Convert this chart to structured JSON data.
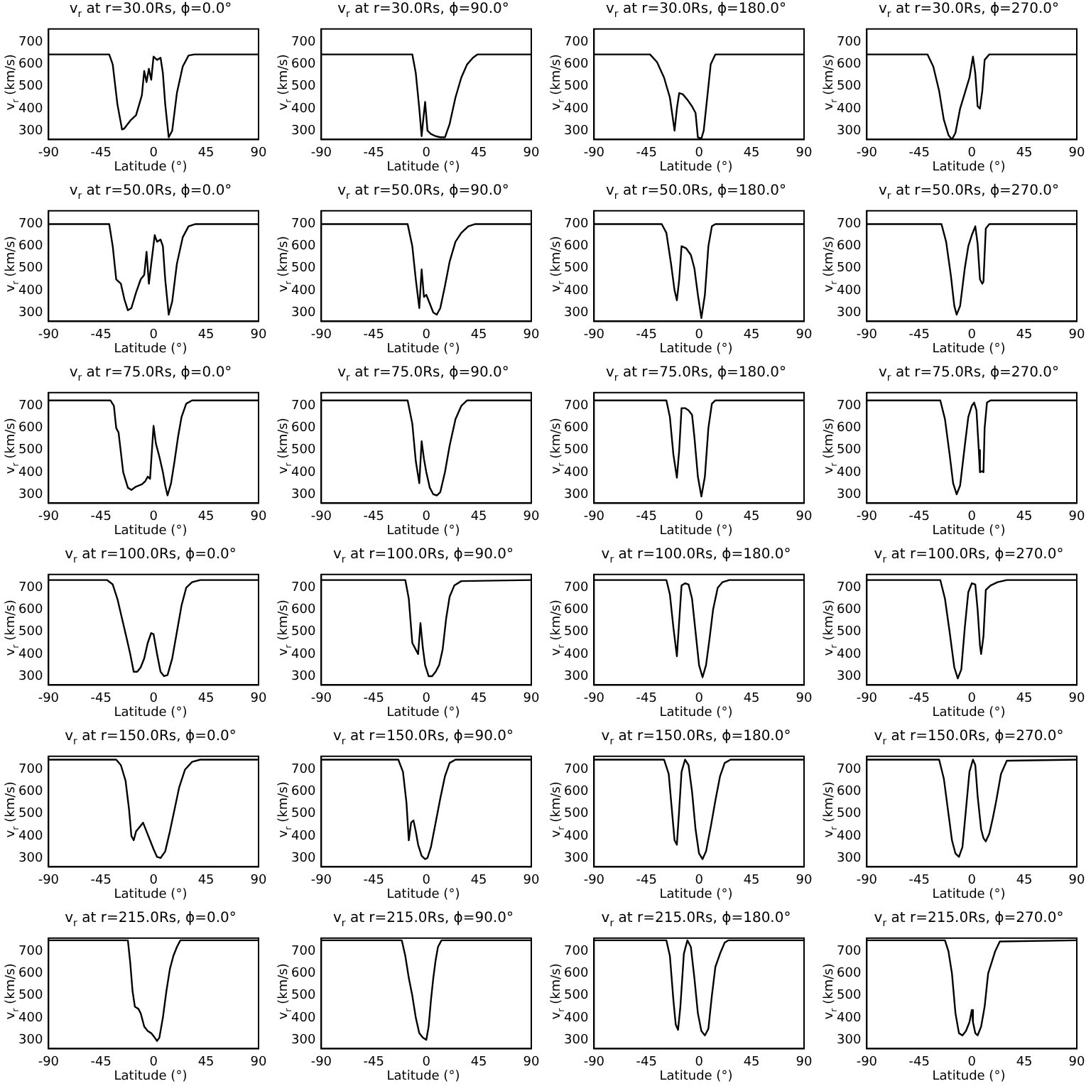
{
  "chart_data": [
    {
      "type": "line",
      "title": "v$_{r}$ at r=30.0Rs, ϕ=0.0°",
      "xlabel": "Latitude (°)",
      "ylabel": "v$_{r}$ (km/s)",
      "color": "#000000",
      "xlim": [
        -90,
        90
      ],
      "xticks": [
        -90,
        -45,
        0,
        45,
        90
      ],
      "ylim": [
        260,
        760
      ],
      "yticks": [
        300,
        400,
        500,
        600,
        700
      ],
      "x": [
        -90,
        -38,
        -35,
        -31,
        -27,
        -25,
        -20,
        -15,
        -10,
        -8,
        -6,
        -4,
        -2,
        0,
        3,
        6,
        8,
        10,
        13,
        16,
        20,
        25,
        30,
        35,
        90
      ],
      "values": [
        645,
        645,
        600,
        420,
        305,
        310,
        345,
        370,
        460,
        570,
        520,
        580,
        530,
        635,
        620,
        630,
        560,
        420,
        270,
        300,
        470,
        590,
        640,
        645,
        645
      ]
    },
    {
      "type": "line",
      "title": "v$_{r}$ at r=30.0Rs, ϕ=90.0°",
      "xlabel": "Latitude (°)",
      "ylabel": "v$_{r}$ (km/s)",
      "color": "#000000",
      "xlim": [
        -90,
        90
      ],
      "xticks": [
        -90,
        -45,
        0,
        45,
        90
      ],
      "ylim": [
        260,
        760
      ],
      "yticks": [
        300,
        400,
        500,
        600,
        700
      ],
      "x": [
        -90,
        -12,
        -9,
        -6,
        -4,
        -3,
        -1,
        1,
        4,
        8,
        12,
        16,
        20,
        25,
        30,
        35,
        40,
        44,
        90
      ],
      "values": [
        645,
        645,
        560,
        400,
        275,
        330,
        430,
        300,
        285,
        275,
        270,
        270,
        330,
        450,
        540,
        600,
        630,
        645,
        645
      ]
    },
    {
      "type": "line",
      "title": "v$_{r}$ at r=30.0Rs, ϕ=180.0°",
      "xlabel": "Latitude (°)",
      "ylabel": "v$_{r}$ (km/s)",
      "color": "#000000",
      "xlim": [
        -90,
        90
      ],
      "xticks": [
        -90,
        -45,
        0,
        45,
        90
      ],
      "ylim": [
        260,
        760
      ],
      "yticks": [
        300,
        400,
        500,
        600,
        700
      ],
      "x": [
        -90,
        -42,
        -36,
        -30,
        -25,
        -21,
        -19,
        -17,
        -14,
        -10,
        -6,
        -3,
        -1,
        2,
        4,
        7,
        10,
        14,
        90
      ],
      "values": [
        645,
        645,
        610,
        540,
        450,
        300,
        400,
        470,
        465,
        440,
        410,
        380,
        270,
        265,
        300,
        450,
        600,
        645,
        645
      ]
    },
    {
      "type": "line",
      "title": "v$_{r}$ at r=30.0Rs, ϕ=270.0°",
      "xlabel": "Latitude (°)",
      "ylabel": "v$_{r}$ (km/s)",
      "color": "#000000",
      "xlim": [
        -90,
        90
      ],
      "xticks": [
        -90,
        -45,
        0,
        45,
        90
      ],
      "ylim": [
        260,
        760
      ],
      "yticks": [
        300,
        400,
        500,
        600,
        700
      ],
      "x": [
        -90,
        -38,
        -33,
        -28,
        -24,
        -20,
        -17,
        -14,
        -10,
        -6,
        -2,
        1,
        3,
        5,
        7,
        9,
        11,
        15,
        90
      ],
      "values": [
        645,
        645,
        590,
        480,
        350,
        280,
        260,
        290,
        400,
        470,
        540,
        635,
        560,
        410,
        400,
        480,
        620,
        645,
        645
      ]
    },
    {
      "type": "line",
      "title": "v$_{r}$ at r=50.0Rs, ϕ=0.0°",
      "xlabel": "Latitude (°)",
      "ylabel": "v$_{r}$ (km/s)",
      "color": "#000000",
      "xlim": [
        -90,
        90
      ],
      "xticks": [
        -90,
        -45,
        0,
        45,
        90
      ],
      "ylim": [
        260,
        760
      ],
      "yticks": [
        300,
        400,
        500,
        600,
        700
      ],
      "x": [
        -90,
        -38,
        -35,
        -32,
        -28,
        -25,
        -22,
        -19,
        -15,
        -11,
        -8,
        -6,
        -4,
        -2,
        1,
        3,
        6,
        8,
        10,
        13,
        16,
        20,
        25,
        30,
        36,
        90
      ],
      "values": [
        700,
        700,
        600,
        450,
        430,
        360,
        310,
        320,
        390,
        450,
        470,
        575,
        430,
        520,
        650,
        620,
        630,
        600,
        450,
        290,
        350,
        520,
        640,
        690,
        700,
        700
      ]
    },
    {
      "type": "line",
      "title": "v$_{r}$ at r=50.0Rs, ϕ=90.0°",
      "xlabel": "Latitude (°)",
      "ylabel": "v$_{r}$ (km/s)",
      "color": "#000000",
      "xlim": [
        -90,
        90
      ],
      "xticks": [
        -90,
        -45,
        0,
        45,
        90
      ],
      "ylim": [
        260,
        760
      ],
      "yticks": [
        300,
        400,
        500,
        600,
        700
      ],
      "x": [
        -90,
        -16,
        -12,
        -9,
        -6,
        -4,
        -2,
        0,
        3,
        6,
        9,
        12,
        16,
        20,
        25,
        30,
        36,
        42,
        90
      ],
      "values": [
        700,
        700,
        600,
        450,
        320,
        495,
        370,
        380,
        340,
        300,
        290,
        320,
        420,
        530,
        620,
        660,
        690,
        700,
        700
      ]
    },
    {
      "type": "line",
      "title": "v$_{r}$ at r=50.0Rs, ϕ=180.0°",
      "xlabel": "Latitude (°)",
      "ylabel": "v$_{r}$ (km/s)",
      "color": "#000000",
      "xlim": [
        -90,
        90
      ],
      "xticks": [
        -90,
        -45,
        0,
        45,
        90
      ],
      "ylim": [
        260,
        760
      ],
      "yticks": [
        300,
        400,
        500,
        600,
        700
      ],
      "x": [
        -90,
        -32,
        -28,
        -24,
        -21,
        -19,
        -17,
        -15,
        -11,
        -7,
        -4,
        -1,
        2,
        5,
        8,
        11,
        14,
        90
      ],
      "values": [
        700,
        700,
        660,
        520,
        400,
        355,
        450,
        600,
        590,
        560,
        500,
        380,
        275,
        380,
        600,
        690,
        700,
        700
      ]
    },
    {
      "type": "line",
      "title": "v$_{r}$ at r=50.0Rs, ϕ=270.0°",
      "xlabel": "Latitude (°)",
      "ylabel": "v$_{r}$ (km/s)",
      "color": "#000000",
      "xlim": [
        -90,
        90
      ],
      "xticks": [
        -90,
        -45,
        0,
        45,
        90
      ],
      "ylim": [
        260,
        760
      ],
      "yticks": [
        300,
        400,
        500,
        600,
        700
      ],
      "x": [
        -90,
        -26,
        -22,
        -18,
        -15,
        -13,
        -10,
        -6,
        -3,
        0,
        3,
        5,
        7,
        9,
        10,
        12,
        15,
        90
      ],
      "values": [
        700,
        700,
        620,
        470,
        330,
        290,
        330,
        500,
        600,
        650,
        690,
        610,
        450,
        430,
        440,
        680,
        700,
        700
      ]
    },
    {
      "type": "line",
      "title": "v$_{r}$ at r=75.0Rs, ϕ=0.0°",
      "xlabel": "Latitude (°)",
      "ylabel": "v$_{r}$ (km/s)",
      "color": "#000000",
      "xlim": [
        -90,
        90
      ],
      "xticks": [
        -90,
        -45,
        0,
        45,
        90
      ],
      "ylim": [
        260,
        760
      ],
      "yticks": [
        300,
        400,
        500,
        600,
        700
      ],
      "x": [
        -90,
        -37,
        -34,
        -32,
        -30,
        -26,
        -22,
        -19,
        -15,
        -10,
        -7,
        -5,
        -3,
        0,
        2,
        5,
        8,
        10,
        12,
        15,
        18,
        21,
        24,
        28,
        33,
        90
      ],
      "values": [
        725,
        725,
        700,
        600,
        580,
        400,
        330,
        320,
        335,
        345,
        360,
        380,
        370,
        610,
        530,
        470,
        400,
        340,
        295,
        350,
        450,
        560,
        650,
        710,
        725,
        725
      ]
    },
    {
      "type": "line",
      "title": "v$_{r}$ at r=75.0Rs, ϕ=90.0°",
      "xlabel": "Latitude (°)",
      "ylabel": "v$_{r}$ (km/s)",
      "color": "#000000",
      "xlim": [
        -90,
        90
      ],
      "xticks": [
        -90,
        -45,
        0,
        45,
        90
      ],
      "ylim": [
        260,
        760
      ],
      "yticks": [
        300,
        400,
        500,
        600,
        700
      ],
      "x": [
        -90,
        -16,
        -12,
        -9,
        -6,
        -4,
        -2,
        0,
        3,
        6,
        9,
        12,
        16,
        20,
        25,
        30,
        35,
        90
      ],
      "values": [
        725,
        725,
        620,
        450,
        350,
        540,
        460,
        400,
        330,
        300,
        295,
        310,
        400,
        520,
        640,
        700,
        725,
        725
      ]
    },
    {
      "type": "line",
      "title": "v$_{r}$ at r=75.0Rs, ϕ=180.0°",
      "xlabel": "Latitude (°)",
      "ylabel": "v$_{r}$ (km/s)",
      "color": "#000000",
      "xlim": [
        -90,
        90
      ],
      "xticks": [
        -90,
        -45,
        0,
        45,
        90
      ],
      "ylim": [
        260,
        760
      ],
      "yticks": [
        300,
        400,
        500,
        600,
        700
      ],
      "x": [
        -90,
        -28,
        -25,
        -22,
        -19,
        -17,
        -15,
        -12,
        -9,
        -6,
        -4,
        -1,
        2,
        5,
        8,
        11,
        14,
        90
      ],
      "values": [
        725,
        725,
        650,
        480,
        375,
        500,
        690,
        690,
        680,
        660,
        560,
        380,
        290,
        380,
        600,
        710,
        725,
        725
      ]
    },
    {
      "type": "line",
      "title": "v$_{r}$ at r=75.0Rs, ϕ=270.0°",
      "xlabel": "Latitude (°)",
      "ylabel": "v$_{r}$ (km/s)",
      "color": "#000000",
      "xlim": [
        -90,
        90
      ],
      "xticks": [
        -90,
        -45,
        0,
        45,
        90
      ],
      "ylim": [
        260,
        760
      ],
      "yticks": [
        300,
        400,
        500,
        600,
        700
      ],
      "x": [
        -90,
        -27,
        -23,
        -19,
        -16,
        -13,
        -10,
        -6,
        -3,
        0,
        2,
        4,
        6,
        7,
        9,
        10,
        11,
        13,
        16,
        90
      ],
      "values": [
        725,
        725,
        640,
        480,
        350,
        300,
        340,
        520,
        650,
        700,
        715,
        680,
        500,
        400,
        405,
        400,
        600,
        715,
        725,
        725
      ]
    },
    {
      "type": "line",
      "title": "v$_{r}$ at r=100.0Rs, ϕ=0.0°",
      "xlabel": "Latitude (°)",
      "ylabel": "v$_{r}$ (km/s)",
      "color": "#000000",
      "xlim": [
        -90,
        90
      ],
      "xticks": [
        -90,
        -45,
        0,
        45,
        90
      ],
      "ylim": [
        260,
        760
      ],
      "yticks": [
        300,
        400,
        500,
        600,
        700
      ],
      "x": [
        -90,
        -40,
        -35,
        -31,
        -27,
        -23,
        -20,
        -17,
        -14,
        -11,
        -8,
        -5,
        -2,
        0,
        3,
        6,
        9,
        12,
        16,
        20,
        24,
        28,
        33,
        40,
        90
      ],
      "values": [
        735,
        735,
        715,
        650,
        560,
        470,
        400,
        320,
        320,
        340,
        380,
        450,
        495,
        490,
        400,
        320,
        300,
        305,
        380,
        500,
        620,
        700,
        725,
        735,
        735
      ]
    },
    {
      "type": "line",
      "title": "v$_{r}$ at r=100.0Rs, ϕ=90.0°",
      "xlabel": "Latitude (°)",
      "ylabel": "v$_{r}$ (km/s)",
      "color": "#000000",
      "xlim": [
        -90,
        90
      ],
      "xticks": [
        -90,
        -45,
        0,
        45,
        90
      ],
      "ylim": [
        260,
        760
      ],
      "yticks": [
        300,
        400,
        500,
        600,
        700
      ],
      "x": [
        -90,
        -18,
        -15,
        -12,
        -9,
        -7,
        -5,
        -3,
        -1,
        2,
        5,
        8,
        11,
        14,
        17,
        20,
        24,
        30,
        90
      ],
      "values": [
        735,
        735,
        650,
        450,
        420,
        400,
        540,
        430,
        350,
        300,
        300,
        320,
        350,
        420,
        560,
        660,
        710,
        730,
        735
      ]
    },
    {
      "type": "line",
      "title": "v$_{r}$ at r=100.0Rs, ϕ=180.0°",
      "xlabel": "Latitude (°)",
      "ylabel": "v$_{r}$ (km/s)",
      "color": "#000000",
      "xlim": [
        -90,
        90
      ],
      "xticks": [
        -90,
        -45,
        0,
        45,
        90
      ],
      "ylim": [
        260,
        760
      ],
      "yticks": [
        300,
        400,
        500,
        600,
        700
      ],
      "x": [
        -90,
        -28,
        -25,
        -22,
        -19,
        -17,
        -15,
        -12,
        -9,
        -6,
        -3,
        0,
        3,
        6,
        9,
        12,
        16,
        20,
        26,
        90
      ],
      "values": [
        735,
        735,
        670,
        520,
        390,
        550,
        710,
        720,
        715,
        650,
        500,
        350,
        295,
        350,
        470,
        600,
        700,
        725,
        735,
        735
      ]
    },
    {
      "type": "line",
      "title": "v$_{r}$ at r=100.0Rs, ϕ=270.0°",
      "xlabel": "Latitude (°)",
      "ylabel": "v$_{r}$ (km/s)",
      "color": "#000000",
      "xlim": [
        -90,
        90
      ],
      "xticks": [
        -90,
        -45,
        0,
        45,
        90
      ],
      "ylim": [
        260,
        760
      ],
      "yticks": [
        300,
        400,
        500,
        600,
        700
      ],
      "x": [
        -90,
        -27,
        -23,
        -19,
        -15,
        -12,
        -9,
        -6,
        -3,
        0,
        3,
        5,
        7,
        8,
        10,
        12,
        16,
        22,
        30,
        90
      ],
      "values": [
        735,
        735,
        650,
        500,
        340,
        290,
        330,
        520,
        680,
        720,
        715,
        600,
        440,
        400,
        480,
        690,
        710,
        725,
        735,
        735
      ]
    },
    {
      "type": "line",
      "title": "v$_{r}$ at r=150.0Rs, ϕ=0.0°",
      "xlabel": "Latitude (°)",
      "ylabel": "v$_{r}$ (km/s)",
      "color": "#000000",
      "xlim": [
        -90,
        90
      ],
      "xticks": [
        -90,
        -45,
        0,
        45,
        90
      ],
      "ylim": [
        260,
        760
      ],
      "yticks": [
        300,
        400,
        500,
        600,
        700
      ],
      "x": [
        -90,
        -32,
        -28,
        -24,
        -21,
        -19,
        -17,
        -15,
        -12,
        -9,
        -6,
        -3,
        0,
        3,
        6,
        10,
        14,
        18,
        22,
        27,
        33,
        40,
        90
      ],
      "values": [
        745,
        745,
        720,
        650,
        520,
        400,
        380,
        420,
        440,
        460,
        420,
        380,
        340,
        305,
        300,
        330,
        420,
        520,
        620,
        700,
        735,
        745,
        745
      ]
    },
    {
      "type": "line",
      "title": "v$_{r}$ at r=150.0Rs, ϕ=90.0°",
      "xlabel": "Latitude (°)",
      "ylabel": "v$_{r}$ (km/s)",
      "color": "#000000",
      "xlim": [
        -90,
        90
      ],
      "xticks": [
        -90,
        -45,
        0,
        45,
        90
      ],
      "ylim": [
        260,
        760
      ],
      "yticks": [
        300,
        400,
        500,
        600,
        700
      ],
      "x": [
        -90,
        -24,
        -20,
        -17,
        -15,
        -13,
        -11,
        -9,
        -7,
        -4,
        -1,
        1,
        4,
        8,
        12,
        16,
        20,
        25,
        90
      ],
      "values": [
        745,
        745,
        690,
        550,
        380,
        460,
        470,
        420,
        360,
        310,
        295,
        300,
        350,
        460,
        570,
        670,
        730,
        745,
        745
      ]
    },
    {
      "type": "line",
      "title": "v$_{r}$ at r=150.0Rs, ϕ=180.0°",
      "xlabel": "Latitude (°)",
      "ylabel": "v$_{r}$ (km/s)",
      "color": "#000000",
      "xlim": [
        -90,
        90
      ],
      "xticks": [
        -90,
        -45,
        0,
        45,
        90
      ],
      "ylim": [
        260,
        760
      ],
      "yticks": [
        300,
        400,
        500,
        600,
        700
      ],
      "x": [
        -90,
        -30,
        -26,
        -23,
        -21,
        -19,
        -17,
        -15,
        -12,
        -9,
        -6,
        -3,
        0,
        3,
        6,
        10,
        14,
        18,
        22,
        27,
        90
      ],
      "values": [
        745,
        745,
        680,
        500,
        380,
        360,
        520,
        690,
        745,
        720,
        600,
        430,
        320,
        295,
        330,
        440,
        560,
        670,
        730,
        745,
        745
      ]
    },
    {
      "type": "line",
      "title": "v$_{r}$ at r=150.0Rs, ϕ=270.0°",
      "xlabel": "Latitude (°)",
      "ylabel": "v$_{r}$ (km/s)",
      "color": "#000000",
      "xlim": [
        -90,
        90
      ],
      "xticks": [
        -90,
        -45,
        0,
        45,
        90
      ],
      "ylim": [
        260,
        760
      ],
      "yticks": [
        300,
        400,
        500,
        600,
        700
      ],
      "x": [
        -90,
        -28,
        -24,
        -20,
        -17,
        -14,
        -11,
        -8,
        -5,
        -2,
        1,
        3,
        5,
        8,
        10,
        12,
        15,
        18,
        21,
        25,
        30,
        90
      ],
      "values": [
        745,
        745,
        660,
        500,
        380,
        320,
        305,
        350,
        520,
        690,
        745,
        720,
        580,
        430,
        390,
        375,
        410,
        480,
        560,
        680,
        740,
        745
      ]
    },
    {
      "type": "line",
      "title": "v$_{r}$ at r=215.0Rs, ϕ=0.0°",
      "xlabel": "Latitude (°)",
      "ylabel": "v$_{r}$ (km/s)",
      "color": "#000000",
      "xlim": [
        -90,
        90
      ],
      "xticks": [
        -90,
        -45,
        0,
        45,
        90
      ],
      "ylim": [
        260,
        760
      ],
      "yticks": [
        300,
        400,
        500,
        600,
        700
      ],
      "x": [
        -90,
        -22,
        -20,
        -18,
        -16,
        -13,
        -11,
        -8,
        -5,
        -2,
        1,
        3,
        5,
        8,
        11,
        14,
        17,
        20,
        23,
        90
      ],
      "values": [
        750,
        750,
        650,
        520,
        450,
        440,
        420,
        360,
        340,
        330,
        310,
        295,
        310,
        400,
        520,
        620,
        680,
        720,
        750,
        750
      ]
    },
    {
      "type": "line",
      "title": "v$_{r}$ at r=215.0Rs, ϕ=90.0°",
      "xlabel": "Latitude (°)",
      "ylabel": "v$_{r}$ (km/s)",
      "color": "#000000",
      "xlim": [
        -90,
        90
      ],
      "xticks": [
        -90,
        -45,
        0,
        45,
        90
      ],
      "ylim": [
        260,
        760
      ],
      "yticks": [
        300,
        400,
        500,
        600,
        700
      ],
      "x": [
        -90,
        -21,
        -18,
        -15,
        -12,
        -9,
        -6,
        -3,
        0,
        2,
        4,
        6,
        8,
        10,
        13,
        90
      ],
      "values": [
        750,
        750,
        680,
        580,
        500,
        400,
        330,
        310,
        300,
        360,
        480,
        580,
        660,
        720,
        750,
        750
      ]
    },
    {
      "type": "line",
      "title": "v$_{r}$ at r=215.0Rs, ϕ=180.0°",
      "xlabel": "Latitude (°)",
      "ylabel": "v$_{r}$ (km/s)",
      "color": "#000000",
      "xlim": [
        -90,
        90
      ],
      "xticks": [
        -90,
        -45,
        0,
        45,
        90
      ],
      "ylim": [
        260,
        760
      ],
      "yticks": [
        300,
        400,
        500,
        600,
        700
      ],
      "x": [
        -90,
        -28,
        -25,
        -22,
        -20,
        -18,
        -16,
        -13,
        -10,
        -7,
        -4,
        -1,
        2,
        5,
        8,
        11,
        14,
        18,
        22,
        25,
        90
      ],
      "values": [
        750,
        750,
        680,
        480,
        370,
        345,
        450,
        690,
        750,
        720,
        580,
        420,
        340,
        320,
        350,
        500,
        630,
        690,
        740,
        750,
        750
      ]
    },
    {
      "type": "line",
      "title": "v$_{r}$ at r=215.0Rs, ϕ=270.0°",
      "xlabel": "Latitude (°)",
      "ylabel": "v$_{r}$ (km/s)",
      "color": "#000000",
      "xlim": [
        -90,
        90
      ],
      "xticks": [
        -90,
        -45,
        0,
        45,
        90
      ],
      "ylim": [
        260,
        760
      ],
      "yticks": [
        300,
        400,
        500,
        600,
        700
      ],
      "x": [
        -90,
        -23,
        -20,
        -17,
        -14,
        -11,
        -8,
        -5,
        -2,
        0,
        1,
        3,
        5,
        8,
        11,
        14,
        17,
        20,
        24,
        90
      ],
      "values": [
        750,
        750,
        700,
        600,
        420,
        330,
        320,
        340,
        380,
        435,
        380,
        330,
        320,
        360,
        450,
        600,
        650,
        700,
        745,
        750
      ]
    }
  ]
}
